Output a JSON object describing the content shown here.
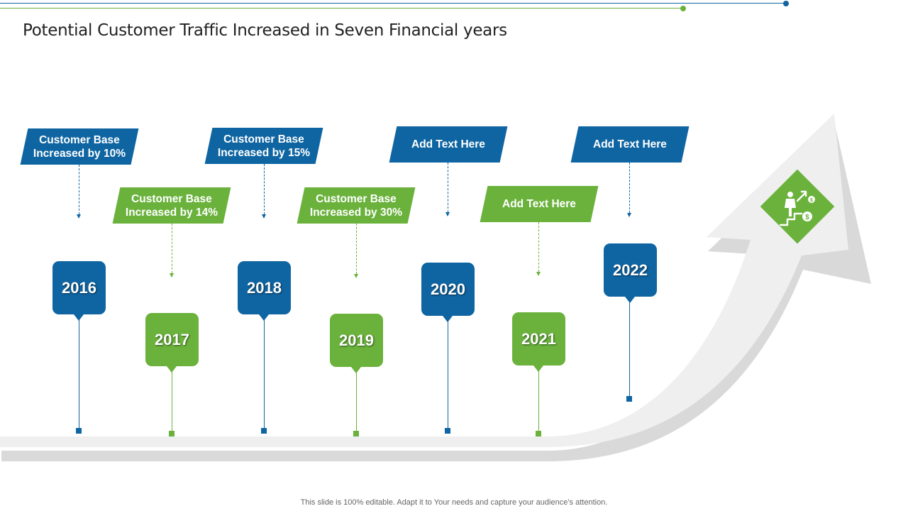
{
  "title": "Potential Customer Traffic Increased in Seven Financial years",
  "footer": "This slide is 100% editable. Adapt it to Your needs and capture your audience’s attention.",
  "colors": {
    "blue": "#0f65a2",
    "green": "#6ab23c",
    "arrow": "#efefef",
    "arrow_shadow": "#d9d9d9"
  },
  "milestones": [
    {
      "year": "2016",
      "text": "Customer Base\nIncreased by 10%",
      "color": "blue"
    },
    {
      "year": "2017",
      "text": "Customer Base\nIncreased by 14%",
      "color": "green"
    },
    {
      "year": "2018",
      "text": "Customer Base\nIncreased by 15%",
      "color": "blue"
    },
    {
      "year": "2019",
      "text": "Customer Base\nIncreased by 30%",
      "color": "green"
    },
    {
      "year": "2020",
      "text": "Add Text Here",
      "color": "blue"
    },
    {
      "year": "2021",
      "text": "Add Text Here",
      "color": "green"
    },
    {
      "year": "2022",
      "text": "Add Text Here",
      "color": "blue"
    }
  ],
  "icon": "growth-stairs-dollar-icon"
}
